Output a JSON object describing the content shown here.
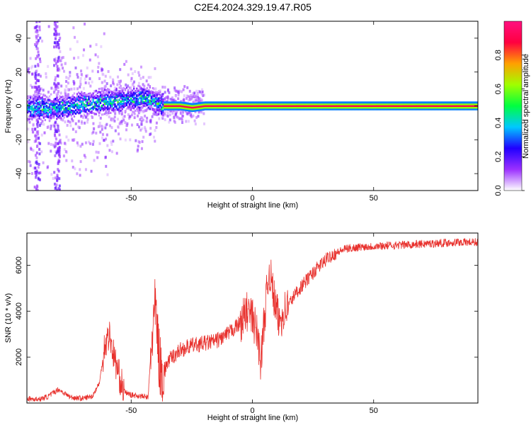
{
  "title": "C2E4.2024.329.19.47.R05",
  "chart_data": [
    {
      "type": "heatmap",
      "xlabel": "Height of straight line (km)",
      "ylabel": "Frequency (Hz)",
      "xlim": [
        -93,
        93
      ],
      "ylim": [
        -50,
        50
      ],
      "xticks": [
        -50,
        0,
        50
      ],
      "yticks": [
        -40,
        -20,
        0,
        20,
        40
      ],
      "grid": false,
      "colorbar": {
        "label": "Normalized spectral amplitude",
        "range": [
          0,
          1
        ],
        "ticks": [
          0.0,
          0.2,
          0.4,
          0.6,
          0.8
        ],
        "colors": [
          "#ffffff",
          "#9b30ff",
          "#2000ff",
          "#00c8ff",
          "#00ff40",
          "#a0ff00",
          "#ffa000",
          "#ff0040",
          "#ff1080"
        ]
      },
      "ridge": [
        {
          "x": -93,
          "y": -1
        },
        {
          "x": -80,
          "y": -1
        },
        {
          "x": -70,
          "y": 1
        },
        {
          "x": -60,
          "y": 3
        },
        {
          "x": -50,
          "y": 4
        },
        {
          "x": -45,
          "y": 5
        },
        {
          "x": -40,
          "y": 3
        },
        {
          "x": -37,
          "y": 0
        },
        {
          "x": -30,
          "y": 0
        },
        {
          "x": -25,
          "y": -1
        },
        {
          "x": -20,
          "y": 0
        },
        {
          "x": 0,
          "y": 0
        },
        {
          "x": 93,
          "y": 0
        }
      ]
    },
    {
      "type": "line",
      "xlabel": "Height of straight line (km)",
      "ylabel": "SNR (10 * v/v)",
      "xlim": [
        -93,
        93
      ],
      "ylim": [
        0,
        7400
      ],
      "xticks": [
        -50,
        0,
        50
      ],
      "yticks": [
        2000,
        4000,
        6000
      ],
      "grid": false,
      "series": [
        {
          "color": "#e8302c",
          "points": [
            {
              "x": -93,
              "y": 200
            },
            {
              "x": -88,
              "y": 150
            },
            {
              "x": -84,
              "y": 300
            },
            {
              "x": -80,
              "y": 600
            },
            {
              "x": -75,
              "y": 250
            },
            {
              "x": -70,
              "y": 200
            },
            {
              "x": -66,
              "y": 300
            },
            {
              "x": -63,
              "y": 900
            },
            {
              "x": -61,
              "y": 2500
            },
            {
              "x": -59,
              "y": 3000
            },
            {
              "x": -57,
              "y": 2000
            },
            {
              "x": -55,
              "y": 1200
            },
            {
              "x": -53,
              "y": 500
            },
            {
              "x": -50,
              "y": 350
            },
            {
              "x": -46,
              "y": 300
            },
            {
              "x": -43,
              "y": 250
            },
            {
              "x": -41.5,
              "y": 2800
            },
            {
              "x": -40,
              "y": 4200
            },
            {
              "x": -38.5,
              "y": 2000
            },
            {
              "x": -37,
              "y": 1000
            },
            {
              "x": -35,
              "y": 1800
            },
            {
              "x": -30,
              "y": 2300
            },
            {
              "x": -25,
              "y": 2500
            },
            {
              "x": -20,
              "y": 2600
            },
            {
              "x": -15,
              "y": 2700
            },
            {
              "x": -10,
              "y": 3000
            },
            {
              "x": -5,
              "y": 3500
            },
            {
              "x": -2,
              "y": 4000
            },
            {
              "x": 0,
              "y": 3700
            },
            {
              "x": 2,
              "y": 3000
            },
            {
              "x": 3.5,
              "y": 1800
            },
            {
              "x": 5,
              "y": 3800
            },
            {
              "x": 7,
              "y": 5800
            },
            {
              "x": 9,
              "y": 4500
            },
            {
              "x": 11,
              "y": 3500
            },
            {
              "x": 13,
              "y": 4000
            },
            {
              "x": 15,
              "y": 4300
            },
            {
              "x": 18,
              "y": 4800
            },
            {
              "x": 22,
              "y": 5300
            },
            {
              "x": 27,
              "y": 5900
            },
            {
              "x": 32,
              "y": 6400
            },
            {
              "x": 38,
              "y": 6700
            },
            {
              "x": 45,
              "y": 6800
            },
            {
              "x": 55,
              "y": 6850
            },
            {
              "x": 65,
              "y": 6900
            },
            {
              "x": 75,
              "y": 6950
            },
            {
              "x": 85,
              "y": 7000
            },
            {
              "x": 93,
              "y": 7000
            }
          ]
        }
      ]
    }
  ]
}
